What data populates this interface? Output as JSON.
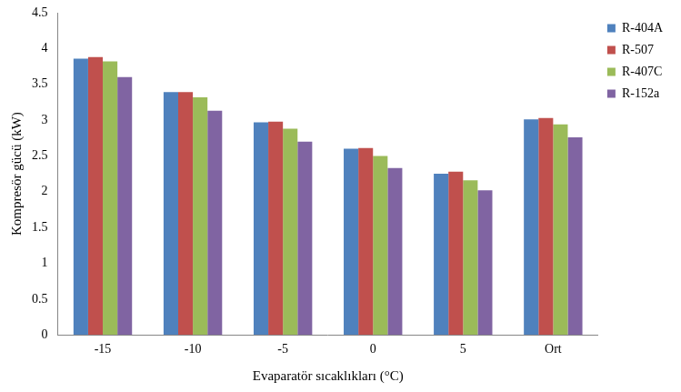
{
  "chart_data": {
    "type": "bar",
    "x_label": "Evaparatör sıcaklıkları (°C)",
    "y_label": "Kompresör gücü (kW)",
    "categories": [
      "-15",
      "-10",
      "-5",
      "0",
      "5",
      "Ort"
    ],
    "series": [
      {
        "name": "R-404A",
        "color": "#4F81BD",
        "values": [
          3.86,
          3.39,
          2.97,
          2.6,
          2.25,
          3.01
        ]
      },
      {
        "name": "R-507",
        "color": "#C0504D",
        "values": [
          3.88,
          3.39,
          2.98,
          2.61,
          2.28,
          3.03
        ]
      },
      {
        "name": "R-407C",
        "color": "#9BBB59",
        "values": [
          3.82,
          3.32,
          2.88,
          2.5,
          2.16,
          2.94
        ]
      },
      {
        "name": "R-152a",
        "color": "#8064A2",
        "values": [
          3.6,
          3.13,
          2.7,
          2.33,
          2.02,
          2.76
        ]
      }
    ],
    "ylim": [
      0,
      4.5
    ],
    "yticks": [
      0,
      0.5,
      1,
      1.5,
      2,
      2.5,
      3,
      3.5,
      4,
      4.5
    ],
    "grid": false,
    "legend": "top right"
  }
}
